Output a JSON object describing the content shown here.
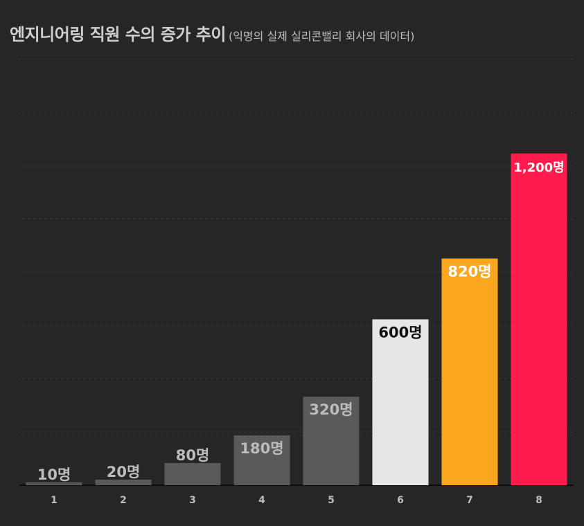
{
  "chart_data": {
    "type": "bar",
    "title": "엔지니어링 직원 수의 증가 추이",
    "subtitle": "(익명의 실제 실리콘밸리 회사의 데이터)",
    "categories": [
      "1",
      "2",
      "3",
      "4",
      "5",
      "6",
      "7",
      "8"
    ],
    "values": [
      10,
      20,
      80,
      180,
      320,
      600,
      820,
      1200
    ],
    "data_labels": [
      "10명",
      "20명",
      "80명",
      "180명",
      "320명",
      "600명",
      "820명",
      "1,200명"
    ],
    "bar_colors": [
      "#5a5a5a",
      "#5a5a5a",
      "#5a5a5a",
      "#5a5a5a",
      "#5a5a5a",
      "#e6e6e6",
      "#fba61f",
      "#ff1b4b"
    ],
    "label_colors": [
      "#bcbcbc",
      "#bcbcbc",
      "#bcbcbc",
      "#bcbcbc",
      "#bcbcbc",
      "#111111",
      "#ffffff",
      "#ffffff"
    ],
    "xlabel": "",
    "ylabel": "",
    "ylim": [
      0,
      1540
    ],
    "grid": true,
    "legend": "none"
  }
}
